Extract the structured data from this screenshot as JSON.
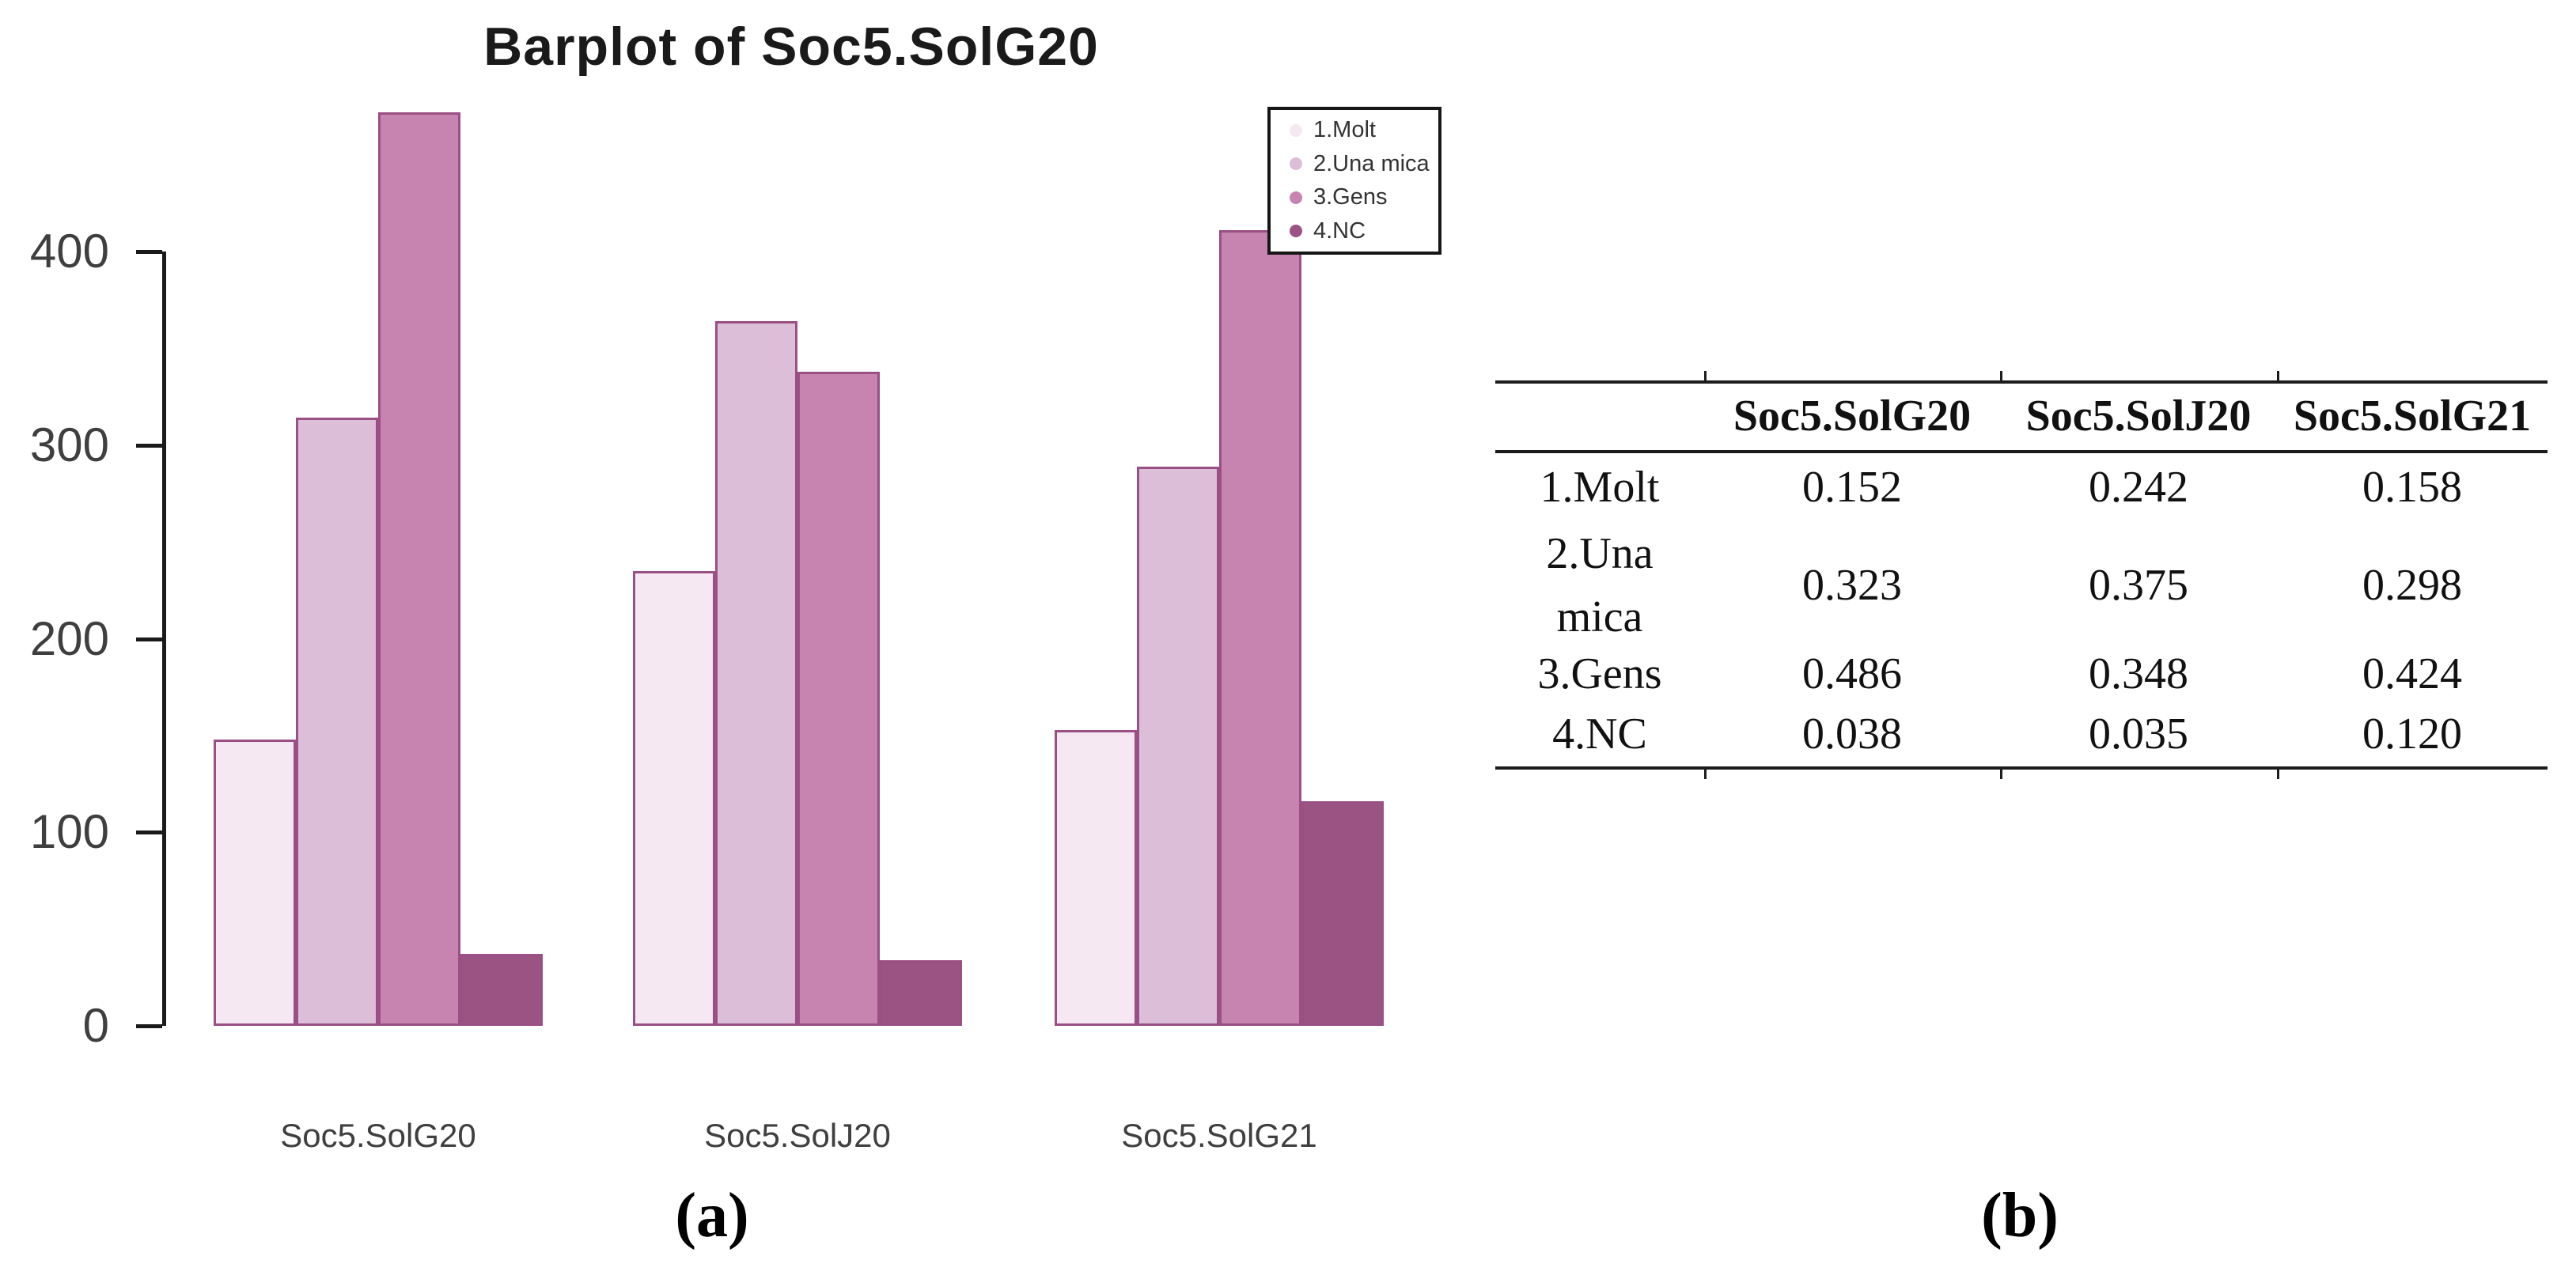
{
  "figure": {
    "caption_a": "(a)",
    "caption_b": "(b)"
  },
  "chart_data": {
    "type": "bar",
    "title": "Barplot of Soc5.SolG20",
    "xlabel": "",
    "ylabel": "",
    "categories": [
      "Soc5.SolG20",
      "Soc5.SolJ20",
      "Soc5.SolG21"
    ],
    "series": [
      {
        "name": "1.Molt",
        "color": "#f6e8f2",
        "values": [
          148,
          235,
          153
        ]
      },
      {
        "name": "2.Una mica",
        "color": "#dcbed9",
        "values": [
          314,
          364,
          289
        ]
      },
      {
        "name": "3.Gens",
        "color": "#c784b0",
        "values": [
          472,
          338,
          411
        ]
      },
      {
        "name": "4.NC",
        "color": "#9a5383",
        "values": [
          37,
          34,
          116
        ]
      }
    ],
    "bar_border_color": "#9a5084",
    "yticks": [
      0,
      100,
      200,
      300,
      400
    ],
    "ylim": [
      0,
      475
    ],
    "grid": false,
    "legend_position": "top-right"
  },
  "table": {
    "columns": [
      "",
      "Soc5.SolG20",
      "Soc5.SolJ20",
      "Soc5.SolG21"
    ],
    "rows": [
      {
        "label": "1.Molt",
        "values": [
          "0.152",
          "0.242",
          "0.158"
        ]
      },
      {
        "label": "2.Una mica",
        "values": [
          "0.323",
          "0.375",
          "0.298"
        ]
      },
      {
        "label": "3.Gens",
        "values": [
          "0.486",
          "0.348",
          "0.424"
        ]
      },
      {
        "label": "4.NC",
        "values": [
          "0.038",
          "0.035",
          "0.120"
        ]
      }
    ]
  }
}
